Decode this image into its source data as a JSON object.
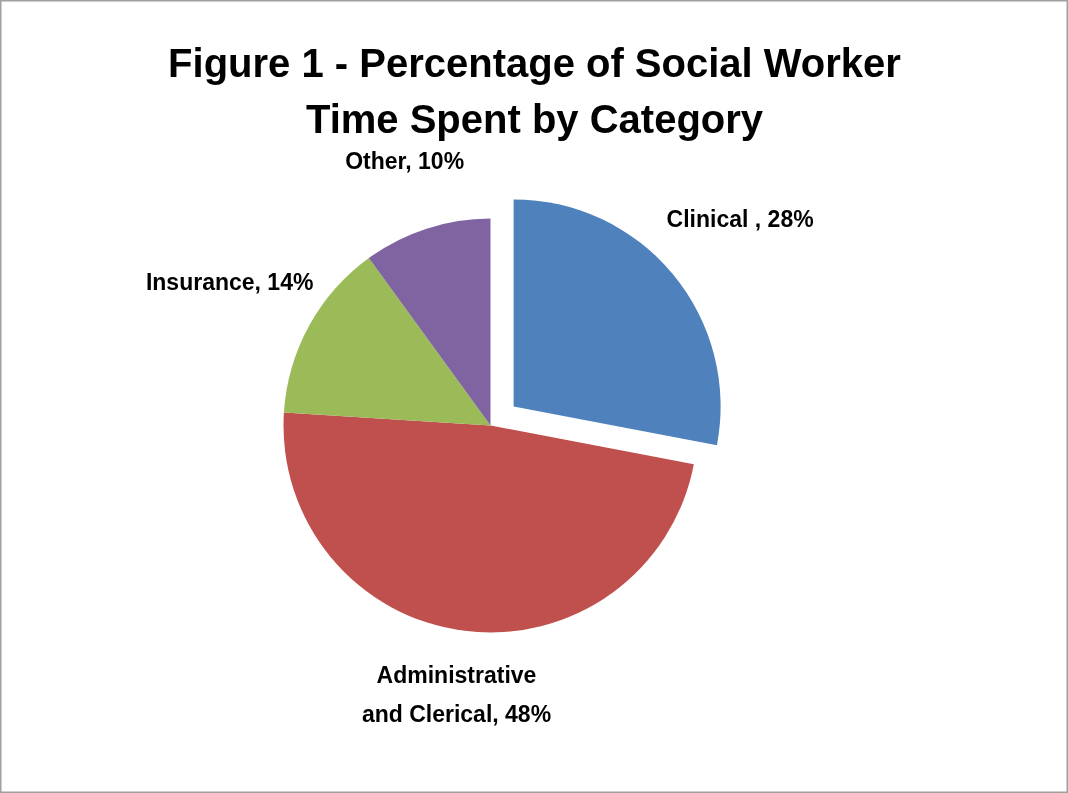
{
  "chart_data": {
    "type": "pie",
    "title": "Figure 1 - Percentage of Social Worker Time Spent by Category",
    "categories": [
      "Clinical ",
      "Administrative and Clerical",
      "Insurance",
      "Other"
    ],
    "values": [
      28,
      48,
      14,
      10
    ],
    "value_labels": [
      "28%",
      "48%",
      "14%",
      "10%"
    ],
    "colors": [
      "#4f81bd",
      "#c0504d",
      "#9bbb59",
      "#8064a2"
    ]
  }
}
